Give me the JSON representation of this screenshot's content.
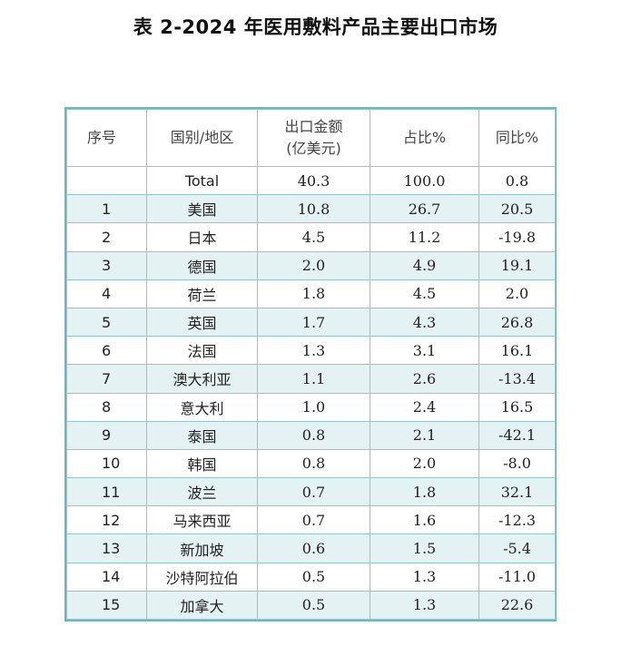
{
  "title": "表 2-2024 年医用敷料产品主要出口市场",
  "table": {
    "headers": {
      "idx": "序号",
      "country": "国别/地区",
      "amount_line1": "出口金额",
      "amount_line2": "(亿美元)",
      "share": "占比%",
      "yoy": "同比%"
    },
    "rows": [
      {
        "idx": "",
        "country": "Total",
        "amount": "40.3",
        "share": "100.0",
        "yoy": "0.8"
      },
      {
        "idx": "1",
        "country": "美国",
        "amount": "10.8",
        "share": "26.7",
        "yoy": "20.5"
      },
      {
        "idx": "2",
        "country": "日本",
        "amount": "4.5",
        "share": "11.2",
        "yoy": "-19.8"
      },
      {
        "idx": "3",
        "country": "德国",
        "amount": "2.0",
        "share": "4.9",
        "yoy": "19.1"
      },
      {
        "idx": "4",
        "country": "荷兰",
        "amount": "1.8",
        "share": "4.5",
        "yoy": "2.0"
      },
      {
        "idx": "5",
        "country": "英国",
        "amount": "1.7",
        "share": "4.3",
        "yoy": "26.8"
      },
      {
        "idx": "6",
        "country": "法国",
        "amount": "1.3",
        "share": "3.1",
        "yoy": "16.1"
      },
      {
        "idx": "7",
        "country": "澳大利亚",
        "amount": "1.1",
        "share": "2.6",
        "yoy": "-13.4"
      },
      {
        "idx": "8",
        "country": "意大利",
        "amount": "1.0",
        "share": "2.4",
        "yoy": "16.5"
      },
      {
        "idx": "9",
        "country": "泰国",
        "amount": "0.8",
        "share": "2.1",
        "yoy": "-42.1"
      },
      {
        "idx": "10",
        "country": "韩国",
        "amount": "0.8",
        "share": "2.0",
        "yoy": "-8.0"
      },
      {
        "idx": "11",
        "country": "波兰",
        "amount": "0.7",
        "share": "1.8",
        "yoy": "32.1"
      },
      {
        "idx": "12",
        "country": "马来西亚",
        "amount": "0.7",
        "share": "1.6",
        "yoy": "-12.3"
      },
      {
        "idx": "13",
        "country": "新加坡",
        "amount": "0.6",
        "share": "1.5",
        "yoy": "-5.4"
      },
      {
        "idx": "14",
        "country": "沙特阿拉伯",
        "amount": "0.5",
        "share": "1.3",
        "yoy": "-11.0"
      },
      {
        "idx": "15",
        "country": "加拿大",
        "amount": "0.5",
        "share": "1.3",
        "yoy": "22.6"
      }
    ]
  },
  "colors": {
    "border": "#6fb5c1",
    "stripe": "#e4f2f4"
  }
}
